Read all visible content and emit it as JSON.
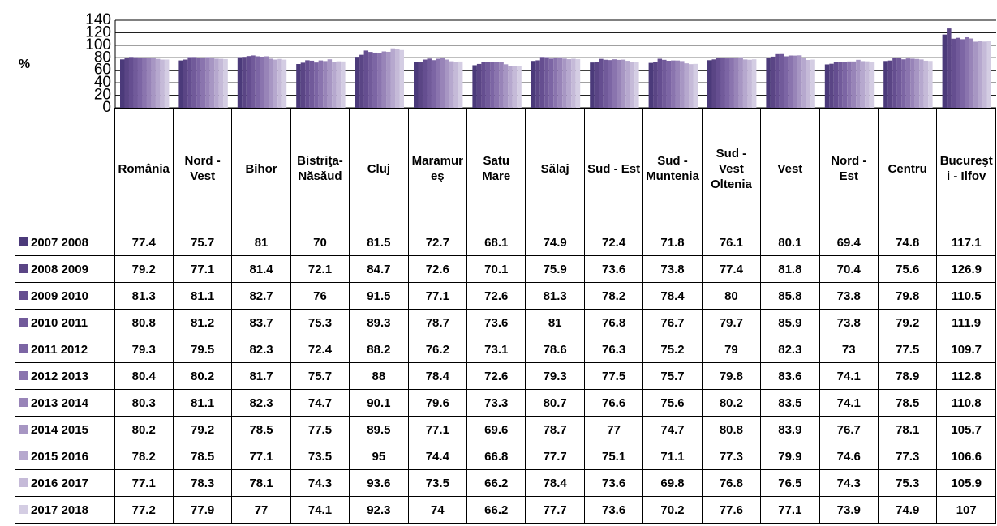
{
  "chart_data": {
    "type": "bar",
    "y_label": "%",
    "categories": [
      "România",
      "Nord - Vest",
      "Bihor",
      "Bistriţa-Năsăud",
      "Cluj",
      "Maramureş",
      "Satu Mare",
      "Sălaj",
      "Sud - Est",
      "Sud - Muntenia",
      "Sud - Vest Oltenia",
      "Vest",
      "Nord - Est",
      "Centru",
      "Bucureşti - Ilfov"
    ],
    "ylim": [
      0,
      140
    ],
    "yticks": [
      0,
      20,
      40,
      60,
      80,
      100,
      120,
      140
    ],
    "grid": true,
    "series": [
      {
        "name": "2007 2008",
        "color": "#4b3a7a",
        "values": [
          77.4,
          75.7,
          81,
          70,
          81.5,
          72.7,
          68.1,
          74.9,
          72.4,
          71.8,
          76.1,
          80.1,
          69.4,
          74.8,
          117.1
        ]
      },
      {
        "name": "2008 2009",
        "color": "#5a4585",
        "values": [
          79.2,
          77.1,
          81.4,
          72.1,
          84.7,
          72.6,
          70.1,
          75.9,
          73.6,
          73.8,
          77.4,
          81.8,
          70.4,
          75.6,
          126.9
        ]
      },
      {
        "name": "2009 2010",
        "color": "#654e90",
        "values": [
          81.3,
          81.1,
          82.7,
          76,
          91.5,
          77.1,
          72.6,
          81.3,
          78.2,
          78.4,
          80,
          85.8,
          73.8,
          79.8,
          110.5
        ]
      },
      {
        "name": "2010 2011",
        "color": "#715a9a",
        "values": [
          80.8,
          81.2,
          83.7,
          75.3,
          89.3,
          78.7,
          73.6,
          81,
          76.8,
          76.7,
          79.7,
          85.9,
          73.8,
          79.2,
          111.9
        ]
      },
      {
        "name": "2011 2012",
        "color": "#7c65a4",
        "values": [
          79.3,
          79.5,
          82.3,
          72.4,
          88.2,
          76.2,
          73.1,
          78.6,
          76.3,
          75.2,
          79,
          82.3,
          73,
          77.5,
          109.7
        ]
      },
      {
        "name": "2012 2013",
        "color": "#8a74ae",
        "values": [
          80.4,
          80.2,
          81.7,
          75.7,
          88,
          78.4,
          72.6,
          79.3,
          77.5,
          75.7,
          79.8,
          83.6,
          74.1,
          78.9,
          112.8
        ]
      },
      {
        "name": "2013 2014",
        "color": "#9884b8",
        "values": [
          80.3,
          81.1,
          82.3,
          74.7,
          90.1,
          79.6,
          73.3,
          80.7,
          76.6,
          75.6,
          80.2,
          83.5,
          74.1,
          78.5,
          110.8
        ]
      },
      {
        "name": "2014 2015",
        "color": "#a796c3",
        "values": [
          80.2,
          79.2,
          78.5,
          77.5,
          89.5,
          77.1,
          69.6,
          78.7,
          77,
          74.7,
          80.8,
          83.9,
          76.7,
          78.1,
          105.7
        ]
      },
      {
        "name": "2015 2016",
        "color": "#b6a8ce",
        "values": [
          78.2,
          78.5,
          77.1,
          73.5,
          95,
          74.4,
          66.8,
          77.7,
          75.1,
          71.1,
          77.3,
          79.9,
          74.6,
          77.3,
          106.6
        ]
      },
      {
        "name": "2016 2017",
        "color": "#c5bad8",
        "values": [
          77.1,
          78.3,
          78.1,
          74.3,
          93.6,
          73.5,
          66.2,
          78.4,
          73.6,
          69.8,
          76.8,
          76.5,
          74.3,
          75.3,
          105.9
        ]
      },
      {
        "name": "2017 2018",
        "color": "#d4cde3",
        "values": [
          77.2,
          77.9,
          77,
          74.1,
          92.3,
          74,
          66.2,
          77.7,
          73.6,
          70.2,
          77.6,
          77.1,
          73.9,
          74.9,
          107
        ]
      }
    ]
  }
}
